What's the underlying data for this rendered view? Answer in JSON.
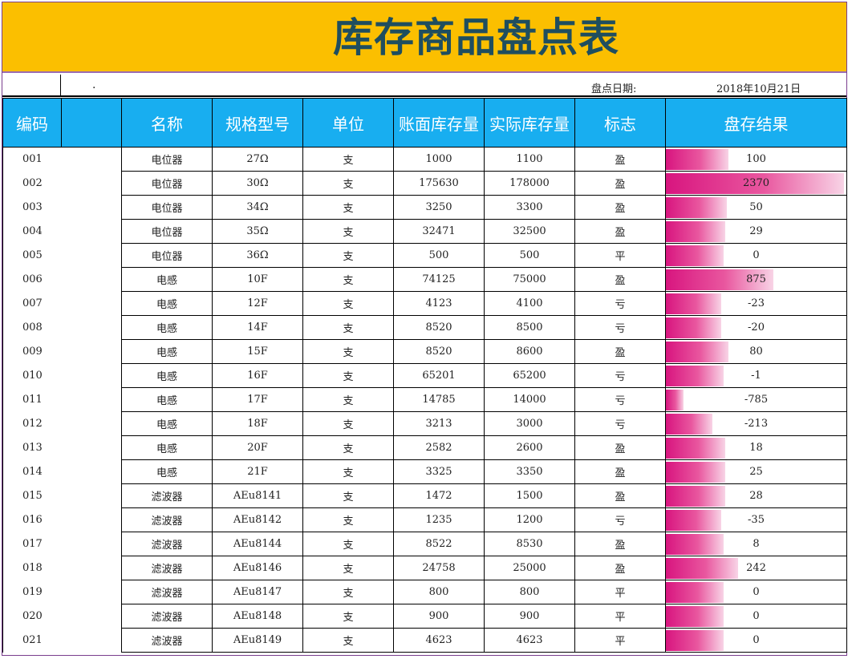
{
  "title": "库存商品盘点表",
  "date_label": "盘点日期:",
  "date_value": "2018年10月21日",
  "dot": "·",
  "headers": [
    "编码",
    "",
    "名称",
    "规格型号",
    "单位",
    "账面库存量",
    "实际库存量",
    "标志",
    "盘存结果"
  ],
  "rows": [
    {
      "code": "001",
      "name": "电位器",
      "spec": "27Ω",
      "unit": "支",
      "book": "1000",
      "actual": "1100",
      "flag": "盈",
      "result": "100",
      "bar": 0.35
    },
    {
      "code": "002",
      "name": "电位器",
      "spec": "30Ω",
      "unit": "支",
      "book": "175630",
      "actual": "178000",
      "flag": "盈",
      "result": "2370",
      "bar": 0.99
    },
    {
      "code": "003",
      "name": "电位器",
      "spec": "34Ω",
      "unit": "支",
      "book": "3250",
      "actual": "3300",
      "flag": "盈",
      "result": "50",
      "bar": 0.34
    },
    {
      "code": "004",
      "name": "电位器",
      "spec": "35Ω",
      "unit": "支",
      "book": "32471",
      "actual": "32500",
      "flag": "盈",
      "result": "29",
      "bar": 0.33
    },
    {
      "code": "005",
      "name": "电位器",
      "spec": "36Ω",
      "unit": "支",
      "book": "500",
      "actual": "500",
      "flag": "平",
      "result": "0",
      "bar": 0.32
    },
    {
      "code": "006",
      "name": "电感",
      "spec": "10F",
      "unit": "支",
      "book": "74125",
      "actual": "75000",
      "flag": "盈",
      "result": "875",
      "bar": 0.6
    },
    {
      "code": "007",
      "name": "电感",
      "spec": "12F",
      "unit": "支",
      "book": "4123",
      "actual": "4100",
      "flag": "亏",
      "result": "-23",
      "bar": 0.31
    },
    {
      "code": "008",
      "name": "电感",
      "spec": "14F",
      "unit": "支",
      "book": "8520",
      "actual": "8500",
      "flag": "亏",
      "result": "-20",
      "bar": 0.31
    },
    {
      "code": "009",
      "name": "电感",
      "spec": "15F",
      "unit": "支",
      "book": "8520",
      "actual": "8600",
      "flag": "盈",
      "result": "80",
      "bar": 0.35
    },
    {
      "code": "010",
      "name": "电感",
      "spec": "16F",
      "unit": "支",
      "book": "65201",
      "actual": "65200",
      "flag": "亏",
      "result": "-1",
      "bar": 0.32
    },
    {
      "code": "011",
      "name": "电感",
      "spec": "17F",
      "unit": "支",
      "book": "14785",
      "actual": "14000",
      "flag": "亏",
      "result": "-785",
      "bar": 0.1
    },
    {
      "code": "012",
      "name": "电感",
      "spec": "18F",
      "unit": "支",
      "book": "3213",
      "actual": "3000",
      "flag": "亏",
      "result": "-213",
      "bar": 0.26
    },
    {
      "code": "013",
      "name": "电感",
      "spec": "20F",
      "unit": "支",
      "book": "2582",
      "actual": "2600",
      "flag": "盈",
      "result": "18",
      "bar": 0.33
    },
    {
      "code": "014",
      "name": "电感",
      "spec": "21F",
      "unit": "支",
      "book": "3325",
      "actual": "3350",
      "flag": "盈",
      "result": "25",
      "bar": 0.33
    },
    {
      "code": "015",
      "name": "滤波器",
      "spec": "AEu8141",
      "unit": "支",
      "book": "1472",
      "actual": "1500",
      "flag": "盈",
      "result": "28",
      "bar": 0.33
    },
    {
      "code": "016",
      "name": "滤波器",
      "spec": "AEu8142",
      "unit": "支",
      "book": "1235",
      "actual": "1200",
      "flag": "亏",
      "result": "-35",
      "bar": 0.31
    },
    {
      "code": "017",
      "name": "滤波器",
      "spec": "AEu8144",
      "unit": "支",
      "book": "8522",
      "actual": "8530",
      "flag": "盈",
      "result": "8",
      "bar": 0.32
    },
    {
      "code": "018",
      "name": "滤波器",
      "spec": "AEu8146",
      "unit": "支",
      "book": "24758",
      "actual": "25000",
      "flag": "盈",
      "result": "242",
      "bar": 0.4
    },
    {
      "code": "019",
      "name": "滤波器",
      "spec": "AEu8147",
      "unit": "支",
      "book": "800",
      "actual": "800",
      "flag": "平",
      "result": "0",
      "bar": 0.32
    },
    {
      "code": "020",
      "name": "滤波器",
      "spec": "AEu8148",
      "unit": "支",
      "book": "900",
      "actual": "900",
      "flag": "平",
      "result": "0",
      "bar": 0.32
    },
    {
      "code": "021",
      "name": "滤波器",
      "spec": "AEu8149",
      "unit": "支",
      "book": "4623",
      "actual": "4623",
      "flag": "平",
      "result": "0",
      "bar": 0.32
    }
  ]
}
